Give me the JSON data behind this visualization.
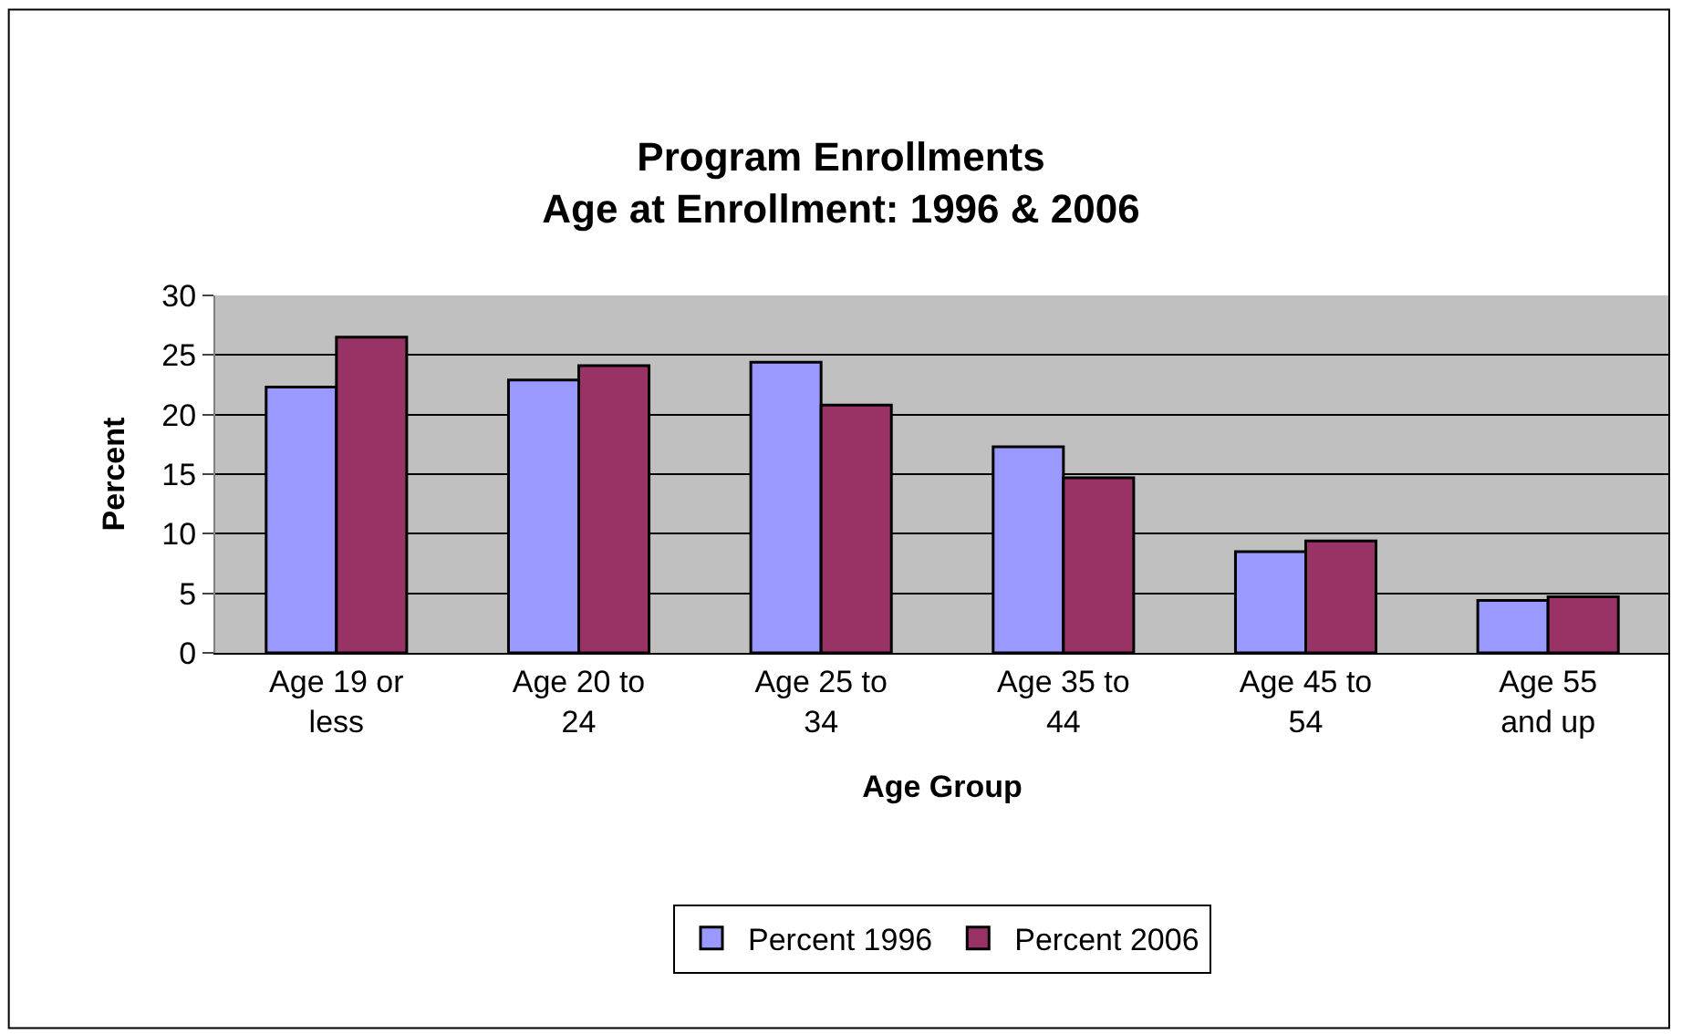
{
  "chart_data": {
    "type": "bar",
    "title": "Program Enrollments\nAge at Enrollment: 1996 & 2006",
    "xlabel": "Age Group",
    "ylabel": "Percent",
    "categories": [
      "Age 19 or\nless",
      "Age 20 to\n24",
      "Age 25 to\n34",
      "Age 35 to\n44",
      "Age 45 to\n54",
      "Age 55\nand up"
    ],
    "series": [
      {
        "name": "Percent 1996",
        "color": "#9999ff",
        "values": [
          22.3,
          22.9,
          24.4,
          17.3,
          8.5,
          4.4
        ]
      },
      {
        "name": "Percent 2006",
        "color": "#993366",
        "values": [
          26.5,
          24.1,
          20.8,
          14.7,
          9.4,
          4.7
        ]
      }
    ],
    "ylim": [
      0,
      30
    ],
    "yticks": [
      0,
      5,
      10,
      15,
      20,
      25,
      30
    ],
    "grid": "y",
    "legend": "bottom"
  }
}
